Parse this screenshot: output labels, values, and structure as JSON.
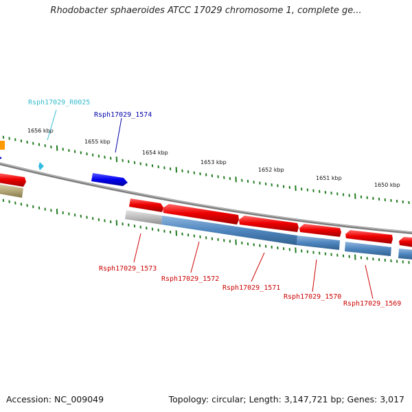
{
  "title": "Rhodobacter sphaeroides ATCC 17029 chromosome 1, complete ge...",
  "footer": {
    "accession": "Accession: NC_009049",
    "summary": "Topology: circular; Length: 3,147,721 bp; Genes: 3,017"
  },
  "colors": {
    "backbone": "#7a7a7a",
    "tick": "#1f7a1f",
    "cds_forward": "#e00000",
    "cds_pseudo": "#bfbfbf",
    "cds_blue": "#4f86bf",
    "cds_olive": "#b5a878",
    "rna": "#33bbe0",
    "orange": "#ff9900",
    "navy": "#0000cc",
    "label_red": "#cc0000",
    "label_navy": "#0000aa",
    "label_cyan": "#33bbcc"
  },
  "scale": {
    "unit": "kbp",
    "ticks": [
      "1656 kbp",
      "1655 kbp",
      "1654 kbp",
      "1653 kbp",
      "1652 kbp",
      "1651 kbp",
      "1650 kbp"
    ]
  },
  "genes": [
    {
      "label": "Rsph17029_R0025",
      "color_key": "label_cyan"
    },
    {
      "label": "Rsph17029_1574",
      "color_key": "label_navy"
    },
    {
      "label": "Rsph17029_1573",
      "color_key": "label_red"
    },
    {
      "label": "Rsph17029_1572",
      "color_key": "label_red"
    },
    {
      "label": "Rsph17029_1571",
      "color_key": "label_red"
    },
    {
      "label": "Rsph17029_1570",
      "color_key": "label_red"
    },
    {
      "label": "Rsph17029_1569",
      "color_key": "label_red"
    }
  ]
}
